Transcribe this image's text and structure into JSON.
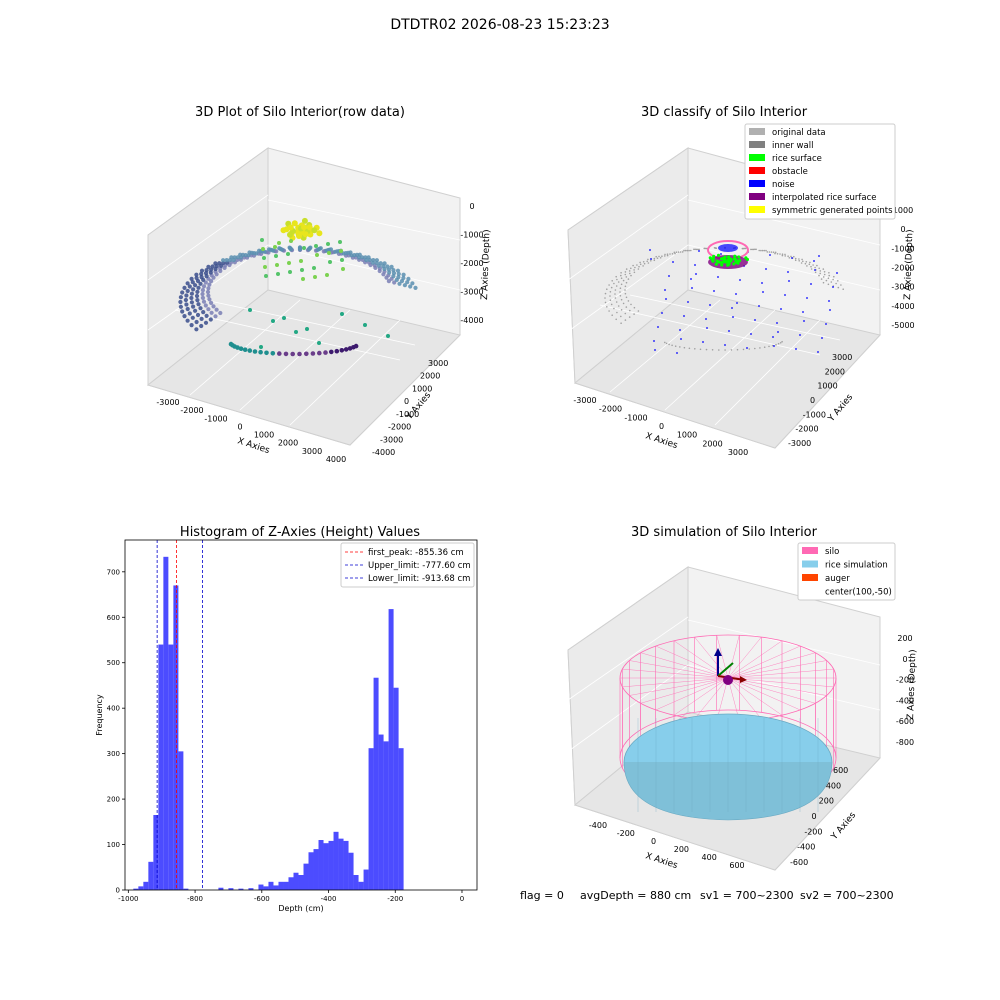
{
  "suptitle": "DTDTR02 2026-08-23 15:23:23",
  "bottom": {
    "flag": "flag = 0",
    "avg": "avgDepth = 880 cm",
    "sv1": "sv1 = 700~2300",
    "sv2": "sv2 = 700~2300"
  },
  "colors": {
    "hist_bar": "#4c4cff",
    "first_peak": "#ff0000",
    "limits": "#0000cc",
    "silo": "#ff69b4",
    "rice": "#87ceeb",
    "auger": "#ff4500"
  },
  "panel1": {
    "title": "3D Plot of Silo Interior(row data)",
    "xlabel": "X Axies",
    "ylabel": "Y Axies",
    "zlabel": "Z Axies (Depth)",
    "x_ticks": [
      "-3000",
      "-2000",
      "-1000",
      "0",
      "1000",
      "2000",
      "3000",
      "4000"
    ],
    "y_ticks": [
      "-4000",
      "-3000",
      "-2000",
      "-1000",
      "0",
      "1000",
      "2000",
      "3000"
    ],
    "z_ticks": [
      "0",
      "-1000",
      "-2000",
      "-3000",
      "-4000"
    ]
  },
  "panel2": {
    "title": "3D classify of Silo Interior",
    "xlabel": "X Axies",
    "ylabel": "Y Axies",
    "zlabel": "Z Axies (Depth)",
    "x_ticks": [
      "-3000",
      "-2000",
      "-1000",
      "0",
      "1000",
      "2000",
      "3000"
    ],
    "y_ticks": [
      "-3000",
      "-2000",
      "-1000",
      "0",
      "1000",
      "2000",
      "3000"
    ],
    "z_ticks": [
      "1000",
      "0",
      "-1000",
      "-2000",
      "-3000",
      "-4000",
      "-5000"
    ],
    "legend": [
      {
        "label": "original data",
        "color": "#b0b0b0"
      },
      {
        "label": "inner wall",
        "color": "#808080"
      },
      {
        "label": "rice surface",
        "color": "#00ff00"
      },
      {
        "label": "obstacle",
        "color": "#ff0000"
      },
      {
        "label": "noise",
        "color": "#0000ff"
      },
      {
        "label": "interpolated rice surface",
        "color": "#800080"
      },
      {
        "label": "symmetric generated points",
        "color": "#ffff00"
      }
    ]
  },
  "panel3": {
    "title": "3D simulation of Silo Interior",
    "xlabel": "X Axies",
    "ylabel": "Y Axies",
    "zlabel": "Z Axies (Depth)",
    "x_ticks": [
      "-400",
      "-200",
      "0",
      "200",
      "400",
      "600"
    ],
    "y_ticks": [
      "-600",
      "-400",
      "-200",
      "0",
      "200",
      "400",
      "600"
    ],
    "z_ticks": [
      "200",
      "0",
      "-200",
      "-400",
      "-600",
      "-800"
    ],
    "legend": [
      {
        "label": "silo",
        "color": "#ff69b4"
      },
      {
        "label": "rice simulation",
        "color": "#87ceeb"
      },
      {
        "label": "auger",
        "color": "#ff4500"
      },
      {
        "label": "center(100,-50)",
        "color": null
      }
    ]
  },
  "chart_data": {
    "type": "bar",
    "title": "Histogram of Z-Axies (Height) Values",
    "xlabel": "Depth (cm)",
    "ylabel": "Frequency",
    "xlim": [
      -1010,
      45
    ],
    "ylim": [
      0,
      770
    ],
    "x_ticks": [
      -1000,
      -800,
      -600,
      -400,
      -200,
      0
    ],
    "y_ticks": [
      0,
      100,
      200,
      300,
      400,
      500,
      600,
      700
    ],
    "bins": [
      [
        -985,
        -970,
        3
      ],
      [
        -970,
        -955,
        8
      ],
      [
        -955,
        -940,
        18
      ],
      [
        -940,
        -925,
        62
      ],
      [
        -925,
        -910,
        165
      ],
      [
        -910,
        -895,
        540
      ],
      [
        -895,
        -880,
        733
      ],
      [
        -880,
        -865,
        540
      ],
      [
        -865,
        -850,
        670
      ],
      [
        -850,
        -835,
        305
      ],
      [
        -835,
        -820,
        3
      ],
      [
        -730,
        -715,
        5
      ],
      [
        -700,
        -685,
        4
      ],
      [
        -670,
        -655,
        3
      ],
      [
        -640,
        -625,
        4
      ],
      [
        -610,
        -595,
        12
      ],
      [
        -595,
        -580,
        8
      ],
      [
        -580,
        -565,
        18
      ],
      [
        -565,
        -550,
        10
      ],
      [
        -550,
        -535,
        18
      ],
      [
        -535,
        -520,
        18
      ],
      [
        -520,
        -505,
        28
      ],
      [
        -505,
        -490,
        38
      ],
      [
        -490,
        -475,
        33
      ],
      [
        -475,
        -460,
        58
      ],
      [
        -460,
        -445,
        83
      ],
      [
        -445,
        -430,
        90
      ],
      [
        -430,
        -415,
        110
      ],
      [
        -415,
        -400,
        103
      ],
      [
        -400,
        -385,
        108
      ],
      [
        -385,
        -370,
        128
      ],
      [
        -370,
        -355,
        113
      ],
      [
        -355,
        -340,
        108
      ],
      [
        -340,
        -325,
        82
      ],
      [
        -325,
        -310,
        33
      ],
      [
        -310,
        -295,
        18
      ],
      [
        -295,
        -280,
        45
      ],
      [
        -280,
        -265,
        312
      ],
      [
        -265,
        -250,
        467
      ],
      [
        -250,
        -235,
        342
      ],
      [
        -235,
        -220,
        327
      ],
      [
        -220,
        -205,
        618
      ],
      [
        -205,
        -190,
        445
      ],
      [
        -190,
        -175,
        312
      ]
    ],
    "vlines": [
      {
        "label": "first_peak: -855.36 cm",
        "x": -855.36,
        "color": "#ff0000"
      },
      {
        "label": "Upper_limit: -777.60 cm",
        "x": -777.6,
        "color": "#0000cc"
      },
      {
        "label": "Lower_limit: -913.68 cm",
        "x": -913.68,
        "color": "#0000cc"
      }
    ]
  }
}
